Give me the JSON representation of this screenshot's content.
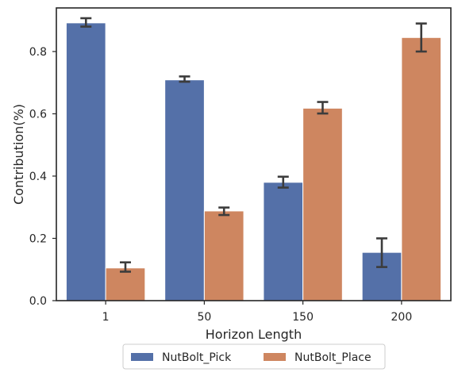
{
  "chart_data": {
    "type": "bar",
    "title": "",
    "xlabel": "Horizon Length",
    "ylabel": "Contribution(%)",
    "categories": [
      "1",
      "50",
      "150",
      "200"
    ],
    "ylim": [
      0,
      0.94
    ],
    "yticks": [
      0.0,
      0.2,
      0.4,
      0.6,
      0.8
    ],
    "ytick_labels": [
      "0.0",
      "0.2",
      "0.4",
      "0.6",
      "0.8"
    ],
    "grid": false,
    "legend_position": "bottom-center",
    "series": [
      {
        "name": "NutBolt_Pick",
        "color": "#5470a8",
        "values": [
          0.892,
          0.709,
          0.38,
          0.155
        ],
        "err_low": [
          0.88,
          0.703,
          0.363,
          0.108
        ],
        "err_high": [
          0.907,
          0.72,
          0.398,
          0.2
        ]
      },
      {
        "name": "NutBolt_Place",
        "color": "#ce8660",
        "values": [
          0.105,
          0.288,
          0.618,
          0.845
        ],
        "err_low": [
          0.093,
          0.275,
          0.601,
          0.8
        ],
        "err_high": [
          0.123,
          0.299,
          0.638,
          0.89
        ]
      }
    ]
  }
}
